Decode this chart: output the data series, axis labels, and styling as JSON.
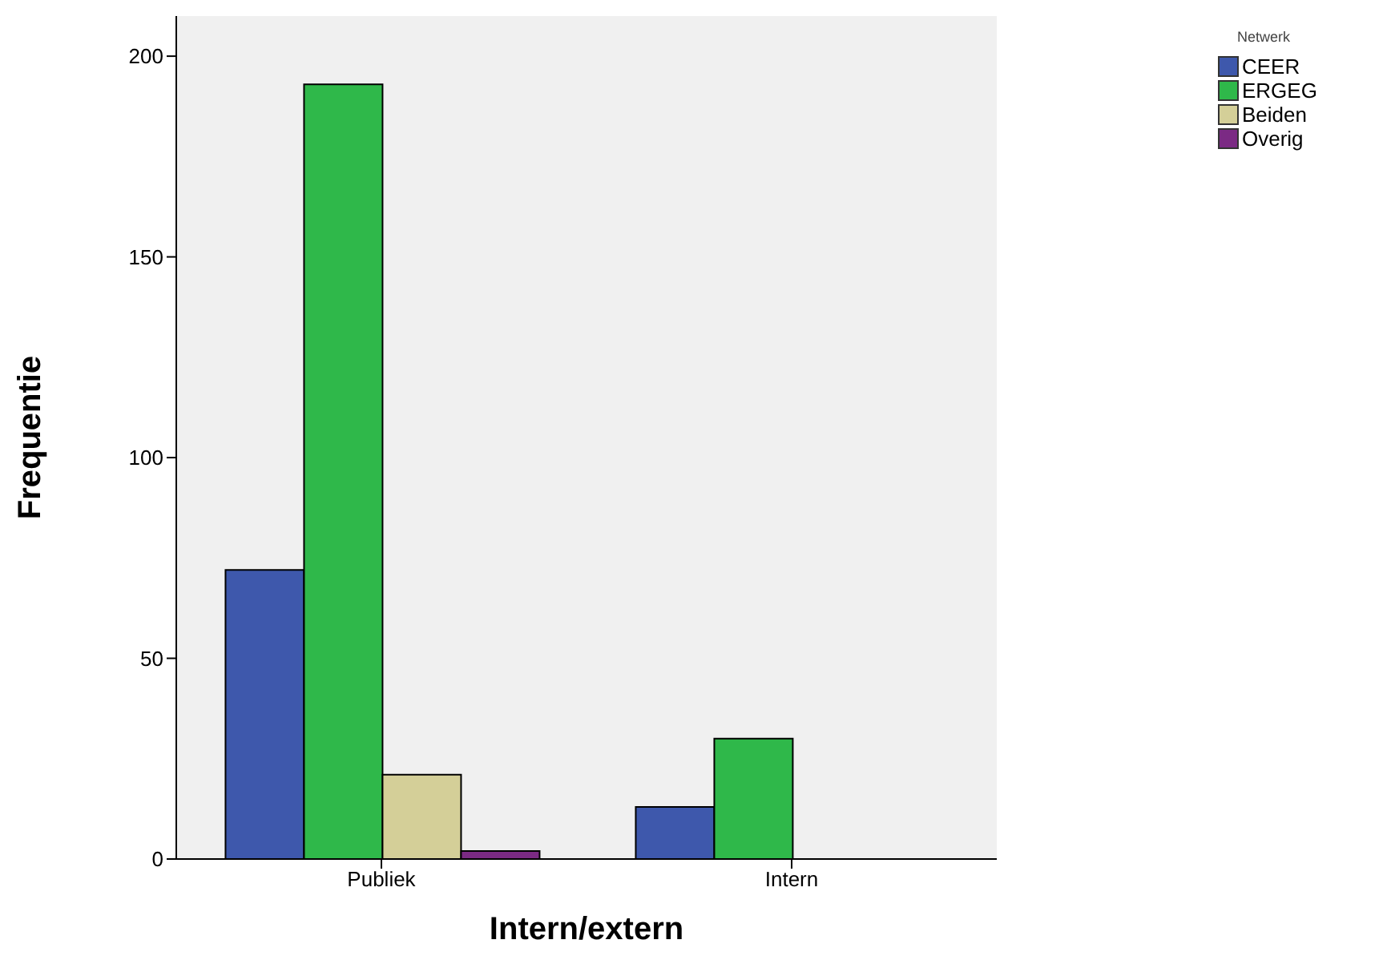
{
  "chart_data": {
    "type": "bar",
    "xlabel": "Intern/extern",
    "ylabel": "Frequentie",
    "legend_title": "Netwerk",
    "categories": [
      "Publiek",
      "Intern"
    ],
    "series": [
      {
        "name": "CEER",
        "color": "#3e58ac",
        "values": [
          72,
          13
        ]
      },
      {
        "name": "ERGEG",
        "color": "#2fb84a",
        "values": [
          193,
          30
        ]
      },
      {
        "name": "Beiden",
        "color": "#d4cf98",
        "values": [
          21,
          0
        ]
      },
      {
        "name": "Overig",
        "color": "#7b2a84",
        "values": [
          2,
          0
        ]
      }
    ],
    "ylim": [
      0,
      210
    ],
    "yticks": [
      0,
      50,
      100,
      150,
      200
    ],
    "grid": false,
    "legend": "top right"
  }
}
